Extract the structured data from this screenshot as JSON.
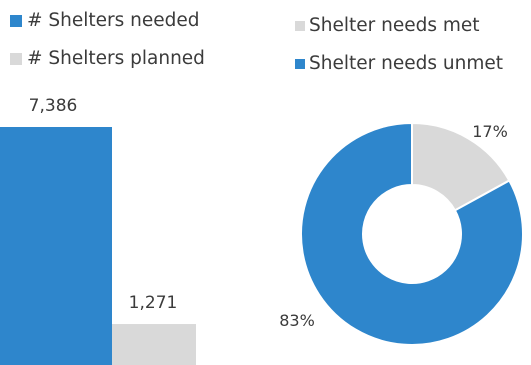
{
  "colors": {
    "blue": "#2e86cc",
    "gray": "#d9d9d9",
    "text": "#3b3b3b"
  },
  "chart_data": [
    {
      "type": "bar",
      "categories": [
        "# Shelters needed",
        "# Shelters planned"
      ],
      "values": [
        7386,
        1271
      ],
      "value_labels": [
        "7,386",
        "1,271"
      ],
      "legend": [
        "# Shelters needed",
        "# Shelters planned"
      ],
      "legend_position": "top-left",
      "colors": [
        "#2e86cc",
        "#d9d9d9"
      ],
      "ylim": [
        0,
        7386
      ]
    },
    {
      "type": "pie",
      "donut": true,
      "categories": [
        "Shelter needs met",
        "Shelter needs unmet"
      ],
      "values": [
        17,
        83
      ],
      "value_labels": [
        "17%",
        "83%"
      ],
      "legend": [
        "Shelter needs met",
        "Shelter needs unmet"
      ],
      "legend_position": "top-right",
      "colors": [
        "#d9d9d9",
        "#2e86cc"
      ]
    }
  ]
}
